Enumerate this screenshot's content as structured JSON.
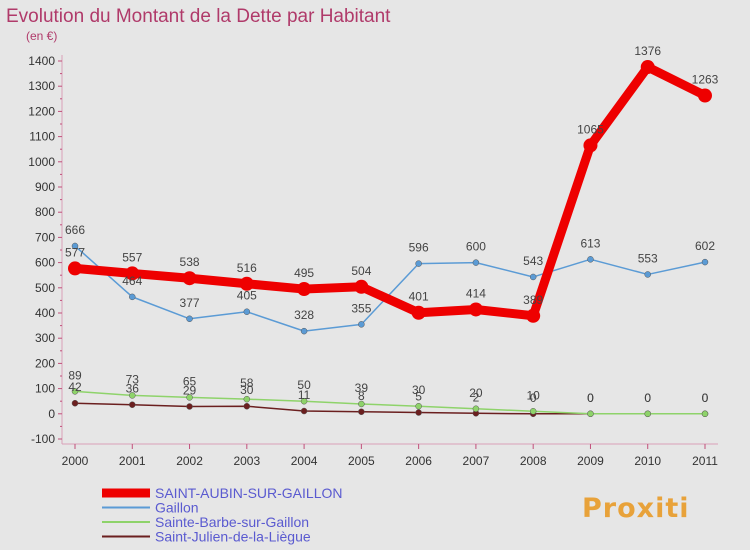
{
  "chart_data": {
    "type": "line",
    "title": "Evolution du Montant de la Dette par Habitant",
    "subtitle": "(en €)",
    "x": [
      "2000",
      "2001",
      "2002",
      "2003",
      "2004",
      "2005",
      "2006",
      "2007",
      "2008",
      "2009",
      "2010",
      "2011"
    ],
    "ylim": [
      -100,
      1400
    ],
    "yticks": [
      -100,
      0,
      100,
      200,
      300,
      400,
      500,
      600,
      700,
      800,
      900,
      1000,
      1100,
      1200,
      1300,
      1400
    ],
    "grid": false,
    "legend_position": "bottom-left",
    "series": [
      {
        "name": "SAINT-AUBIN-SUR-GAILLON",
        "color": "#ee0000",
        "values": [
          577,
          557,
          538,
          516,
          495,
          504,
          401,
          414,
          389,
          1065,
          1376,
          1263
        ],
        "labels": [
          "577",
          "557",
          "538",
          "516",
          "495",
          "504",
          "401",
          "414",
          "389",
          "1065",
          "1376",
          "1263"
        ]
      },
      {
        "name": "Gaillon",
        "color": "#5b9bd5",
        "values": [
          666,
          464,
          377,
          405,
          328,
          355,
          596,
          600,
          543,
          613,
          553,
          602
        ],
        "labels": [
          "666",
          "464",
          "377",
          "405",
          "328",
          "355",
          "596",
          "600",
          "543",
          "613",
          "553",
          "602"
        ]
      },
      {
        "name": "Sainte-Barbe-sur-Gaillon",
        "color": "#8ed36a",
        "values": [
          89,
          73,
          65,
          58,
          50,
          39,
          30,
          20,
          10,
          0,
          0,
          0
        ],
        "labels": [
          "89",
          "73",
          "65",
          "58",
          "50",
          "39",
          "30",
          "20",
          "10",
          "0",
          "0",
          "0"
        ]
      },
      {
        "name": "Saint-Julien-de-la-Liègue",
        "color": "#6b1f1f",
        "values": [
          42,
          36,
          29,
          30,
          11,
          8,
          5,
          2,
          0,
          0,
          0,
          0
        ],
        "labels": [
          "42",
          "36",
          "29",
          "30",
          "11",
          "8",
          "5",
          "2",
          "0",
          "0",
          "0",
          "0"
        ]
      }
    ]
  },
  "logo": {
    "text": "Proxiti"
  }
}
